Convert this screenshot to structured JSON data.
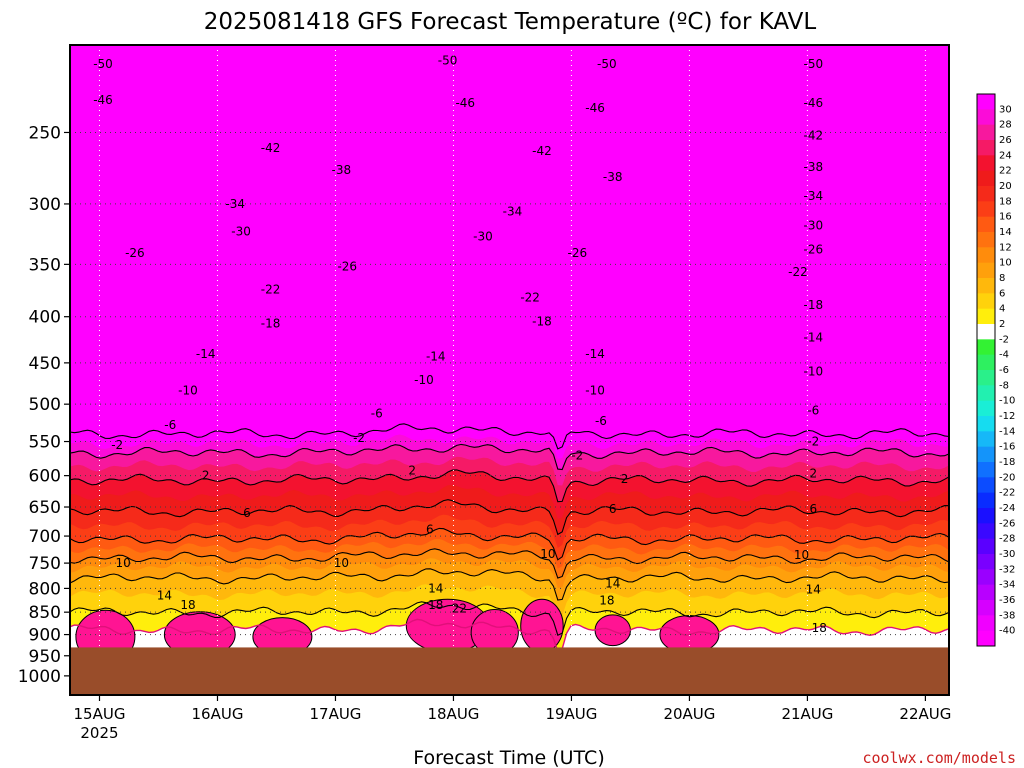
{
  "chart_data": {
    "type": "heatmap",
    "title": "2025081418 GFS Forecast Temperature (ºC) for KAVL",
    "xlabel": "Forecast Time (UTC)",
    "ylabel": "",
    "credit": "coolwx.com/models",
    "x_ticks": [
      "15AUG",
      "16AUG",
      "17AUG",
      "18AUG",
      "19AUG",
      "20AUG",
      "21AUG",
      "22AUG"
    ],
    "x_year": "2025",
    "y_ticks": [
      250,
      300,
      350,
      400,
      450,
      500,
      550,
      600,
      650,
      700,
      750,
      800,
      850,
      900,
      950,
      1000
    ],
    "y_scale": "log",
    "y_axis_reversed": true,
    "ylim": [
      1050,
      200
    ],
    "ground_pressure": 930,
    "grid": true,
    "colorbar": {
      "position": "right",
      "labels": [
        30,
        28,
        26,
        24,
        22,
        20,
        18,
        16,
        14,
        12,
        10,
        8,
        6,
        4,
        2,
        -2,
        -4,
        -6,
        -8,
        -10,
        -12,
        -14,
        -16,
        -18,
        -20,
        -22,
        -24,
        -26,
        -28,
        -30,
        -32,
        -34,
        -36,
        -38,
        -40
      ],
      "colors": [
        "#ff00ff",
        "#fb0cd8",
        "#f7189e",
        "#f51a66",
        "#f3122f",
        "#ef1b1b",
        "#f52a1a",
        "#fb3e16",
        "#ff5a12",
        "#ff720f",
        "#ff8c0c",
        "#ffa00c",
        "#ffb80c",
        "#ffd20c",
        "#ffee0c",
        "#ffffff",
        "#33f233",
        "#2ef060",
        "#2af08a",
        "#22f0b0",
        "#1aeed6",
        "#16dcf0",
        "#16b8f8",
        "#1494fa",
        "#1070ff",
        "#0c4cff",
        "#0a2cff",
        "#1a10ff",
        "#3a08ff",
        "#5a00ff",
        "#7a00ff",
        "#9a00ff",
        "#b800ff",
        "#d600ff",
        "#f000ff",
        "#ff00ff"
      ]
    },
    "contour_labels": [
      {
        "t": 0.03,
        "p": 210,
        "v": "-50"
      },
      {
        "t": 2.95,
        "p": 208,
        "v": "-50"
      },
      {
        "t": 4.3,
        "p": 210,
        "v": "-50"
      },
      {
        "t": 6.05,
        "p": 210,
        "v": "-50"
      },
      {
        "t": 0.03,
        "p": 230,
        "v": "-46"
      },
      {
        "t": 3.1,
        "p": 232,
        "v": "-46"
      },
      {
        "t": 4.2,
        "p": 235,
        "v": "-46"
      },
      {
        "t": 6.05,
        "p": 232,
        "v": "-46"
      },
      {
        "t": 1.45,
        "p": 260,
        "v": "-42"
      },
      {
        "t": 3.75,
        "p": 262,
        "v": "-42"
      },
      {
        "t": 6.05,
        "p": 252,
        "v": "-42"
      },
      {
        "t": 2.05,
        "p": 275,
        "v": "-38"
      },
      {
        "t": 4.35,
        "p": 280,
        "v": "-38"
      },
      {
        "t": 6.05,
        "p": 273,
        "v": "-38"
      },
      {
        "t": 1.15,
        "p": 300,
        "v": "-34"
      },
      {
        "t": 3.5,
        "p": 306,
        "v": "-34"
      },
      {
        "t": 6.05,
        "p": 294,
        "v": "-34"
      },
      {
        "t": 1.2,
        "p": 322,
        "v": "-30"
      },
      {
        "t": 3.25,
        "p": 326,
        "v": "-30"
      },
      {
        "t": 6.05,
        "p": 317,
        "v": "-30"
      },
      {
        "t": 0.3,
        "p": 340,
        "v": "-26"
      },
      {
        "t": 2.1,
        "p": 352,
        "v": "-26"
      },
      {
        "t": 4.05,
        "p": 340,
        "v": "-26"
      },
      {
        "t": 6.05,
        "p": 337,
        "v": "-26"
      },
      {
        "t": 1.45,
        "p": 373,
        "v": "-22"
      },
      {
        "t": 3.65,
        "p": 381,
        "v": "-22"
      },
      {
        "t": 5.92,
        "p": 357,
        "v": "-22"
      },
      {
        "t": 1.45,
        "p": 407,
        "v": "-18"
      },
      {
        "t": 3.75,
        "p": 405,
        "v": "-18"
      },
      {
        "t": 6.05,
        "p": 388,
        "v": "-18"
      },
      {
        "t": 0.9,
        "p": 440,
        "v": "-14"
      },
      {
        "t": 2.85,
        "p": 443,
        "v": "-14"
      },
      {
        "t": 4.2,
        "p": 440,
        "v": "-14"
      },
      {
        "t": 6.05,
        "p": 422,
        "v": "-14"
      },
      {
        "t": 0.75,
        "p": 483,
        "v": "-10"
      },
      {
        "t": 2.75,
        "p": 470,
        "v": "-10"
      },
      {
        "t": 4.2,
        "p": 483,
        "v": "-10"
      },
      {
        "t": 6.05,
        "p": 460,
        "v": "-10"
      },
      {
        "t": 0.6,
        "p": 527,
        "v": "-6"
      },
      {
        "t": 2.35,
        "p": 512,
        "v": "-6"
      },
      {
        "t": 4.25,
        "p": 522,
        "v": "-6"
      },
      {
        "t": 6.05,
        "p": 508,
        "v": "-6"
      },
      {
        "t": 0.15,
        "p": 555,
        "v": "-2"
      },
      {
        "t": 2.2,
        "p": 545,
        "v": "-2"
      },
      {
        "t": 4.05,
        "p": 570,
        "v": "-2"
      },
      {
        "t": 6.05,
        "p": 550,
        "v": "-2"
      },
      {
        "t": 0.9,
        "p": 600,
        "v": "2"
      },
      {
        "t": 2.65,
        "p": 592,
        "v": "2"
      },
      {
        "t": 4.45,
        "p": 605,
        "v": "2"
      },
      {
        "t": 6.05,
        "p": 597,
        "v": "2"
      },
      {
        "t": 1.25,
        "p": 660,
        "v": "6"
      },
      {
        "t": 2.8,
        "p": 688,
        "v": "6"
      },
      {
        "t": 4.35,
        "p": 653,
        "v": "6"
      },
      {
        "t": 6.05,
        "p": 653,
        "v": "6"
      },
      {
        "t": 0.2,
        "p": 750,
        "v": "10"
      },
      {
        "t": 2.05,
        "p": 750,
        "v": "10"
      },
      {
        "t": 3.8,
        "p": 733,
        "v": "10"
      },
      {
        "t": 5.95,
        "p": 735,
        "v": "10"
      },
      {
        "t": 0.55,
        "p": 815,
        "v": "14"
      },
      {
        "t": 2.85,
        "p": 800,
        "v": "14"
      },
      {
        "t": 4.35,
        "p": 790,
        "v": "14"
      },
      {
        "t": 6.05,
        "p": 802,
        "v": "14"
      },
      {
        "t": 0.75,
        "p": 835,
        "v": "18"
      },
      {
        "t": 2.85,
        "p": 835,
        "v": "18"
      },
      {
        "t": 4.3,
        "p": 825,
        "v": "18"
      },
      {
        "t": 6.1,
        "p": 885,
        "v": "18"
      },
      {
        "t": 3.05,
        "p": 842,
        "v": "22"
      }
    ]
  }
}
